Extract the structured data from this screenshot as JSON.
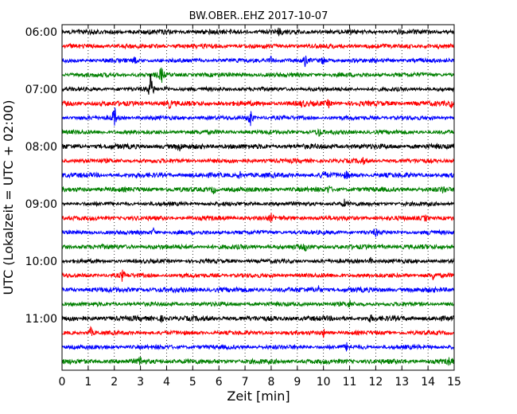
{
  "chart_data": {
    "type": "line",
    "title": "BW.OBER..EHZ 2017-10-07",
    "xlabel": "Zeit  [min]",
    "ylabel": "UTC (Lokalzeit = UTC + 02:00)",
    "xlim": [
      0,
      15
    ],
    "x_ticks": [
      "0",
      "1",
      "2",
      "3",
      "4",
      "5",
      "6",
      "7",
      "8",
      "9",
      "10",
      "11",
      "12",
      "13",
      "14",
      "15"
    ],
    "y_ticks": [
      "06:00",
      "07:00",
      "08:00",
      "09:00",
      "10:00",
      "11:00"
    ],
    "grid": "vertical dotted",
    "trace_colors": [
      "#000000",
      "#ff0000",
      "#0000ff",
      "#008000"
    ],
    "series": [
      {
        "start": "06:00",
        "events": [
          [
            8.3,
            0.3
          ]
        ]
      },
      {
        "start": "06:15",
        "events": []
      },
      {
        "start": "06:30",
        "events": [
          [
            2.8,
            0.35
          ],
          [
            8.0,
            0.4
          ],
          [
            9.3,
            0.45
          ],
          [
            10.0,
            0.4
          ]
        ]
      },
      {
        "start": "06:45",
        "events": [
          [
            3.8,
            0.8
          ]
        ]
      },
      {
        "start": "07:00",
        "events": [
          [
            3.4,
            1.6
          ],
          [
            4.0,
            0.3
          ]
        ]
      },
      {
        "start": "07:15",
        "events": [
          [
            4.1,
            0.35
          ],
          [
            9.2,
            0.3
          ],
          [
            10.2,
            0.3
          ],
          [
            14.9,
            0.3
          ]
        ]
      },
      {
        "start": "07:30",
        "events": [
          [
            2.0,
            1.2
          ],
          [
            7.2,
            1.1
          ]
        ]
      },
      {
        "start": "07:45",
        "events": [
          [
            9.8,
            0.5
          ]
        ]
      },
      {
        "start": "08:00",
        "events": [
          [
            4.5,
            0.3
          ]
        ]
      },
      {
        "start": "08:15",
        "events": [
          [
            11.5,
            0.3
          ]
        ]
      },
      {
        "start": "08:30",
        "events": [
          [
            6.8,
            0.35
          ],
          [
            10.0,
            0.45
          ],
          [
            10.9,
            0.3
          ]
        ]
      },
      {
        "start": "08:45",
        "events": [
          [
            5.8,
            0.4
          ],
          [
            10.2,
            0.35
          ],
          [
            14.6,
            0.3
          ]
        ]
      },
      {
        "start": "09:00",
        "events": [
          [
            10.8,
            0.3
          ]
        ]
      },
      {
        "start": "09:15",
        "events": [
          [
            8.0,
            0.3
          ],
          [
            13.9,
            0.3
          ]
        ]
      },
      {
        "start": "09:30",
        "events": [
          [
            3.5,
            0.35
          ],
          [
            12.0,
            0.35
          ],
          [
            14.1,
            0.3
          ]
        ]
      },
      {
        "start": "09:45",
        "events": [
          [
            9.3,
            0.3
          ]
        ]
      },
      {
        "start": "10:00",
        "events": [
          [
            11.8,
            0.3
          ]
        ]
      },
      {
        "start": "10:15",
        "events": [
          [
            2.3,
            0.45
          ],
          [
            14.2,
            0.35
          ]
        ]
      },
      {
        "start": "10:30",
        "events": [
          [
            9.8,
            0.3
          ]
        ]
      },
      {
        "start": "10:45",
        "events": [
          [
            11.0,
            0.3
          ]
        ]
      },
      {
        "start": "11:00",
        "events": [
          [
            3.8,
            0.3
          ],
          [
            11.8,
            0.3
          ]
        ]
      },
      {
        "start": "11:15",
        "events": [
          [
            1.1,
            0.45
          ],
          [
            10.0,
            0.35
          ]
        ]
      },
      {
        "start": "11:30",
        "events": [
          [
            10.9,
            0.3
          ]
        ]
      },
      {
        "start": "11:45",
        "events": [
          [
            3.0,
            0.45
          ],
          [
            14.8,
            0.3
          ]
        ]
      }
    ]
  }
}
